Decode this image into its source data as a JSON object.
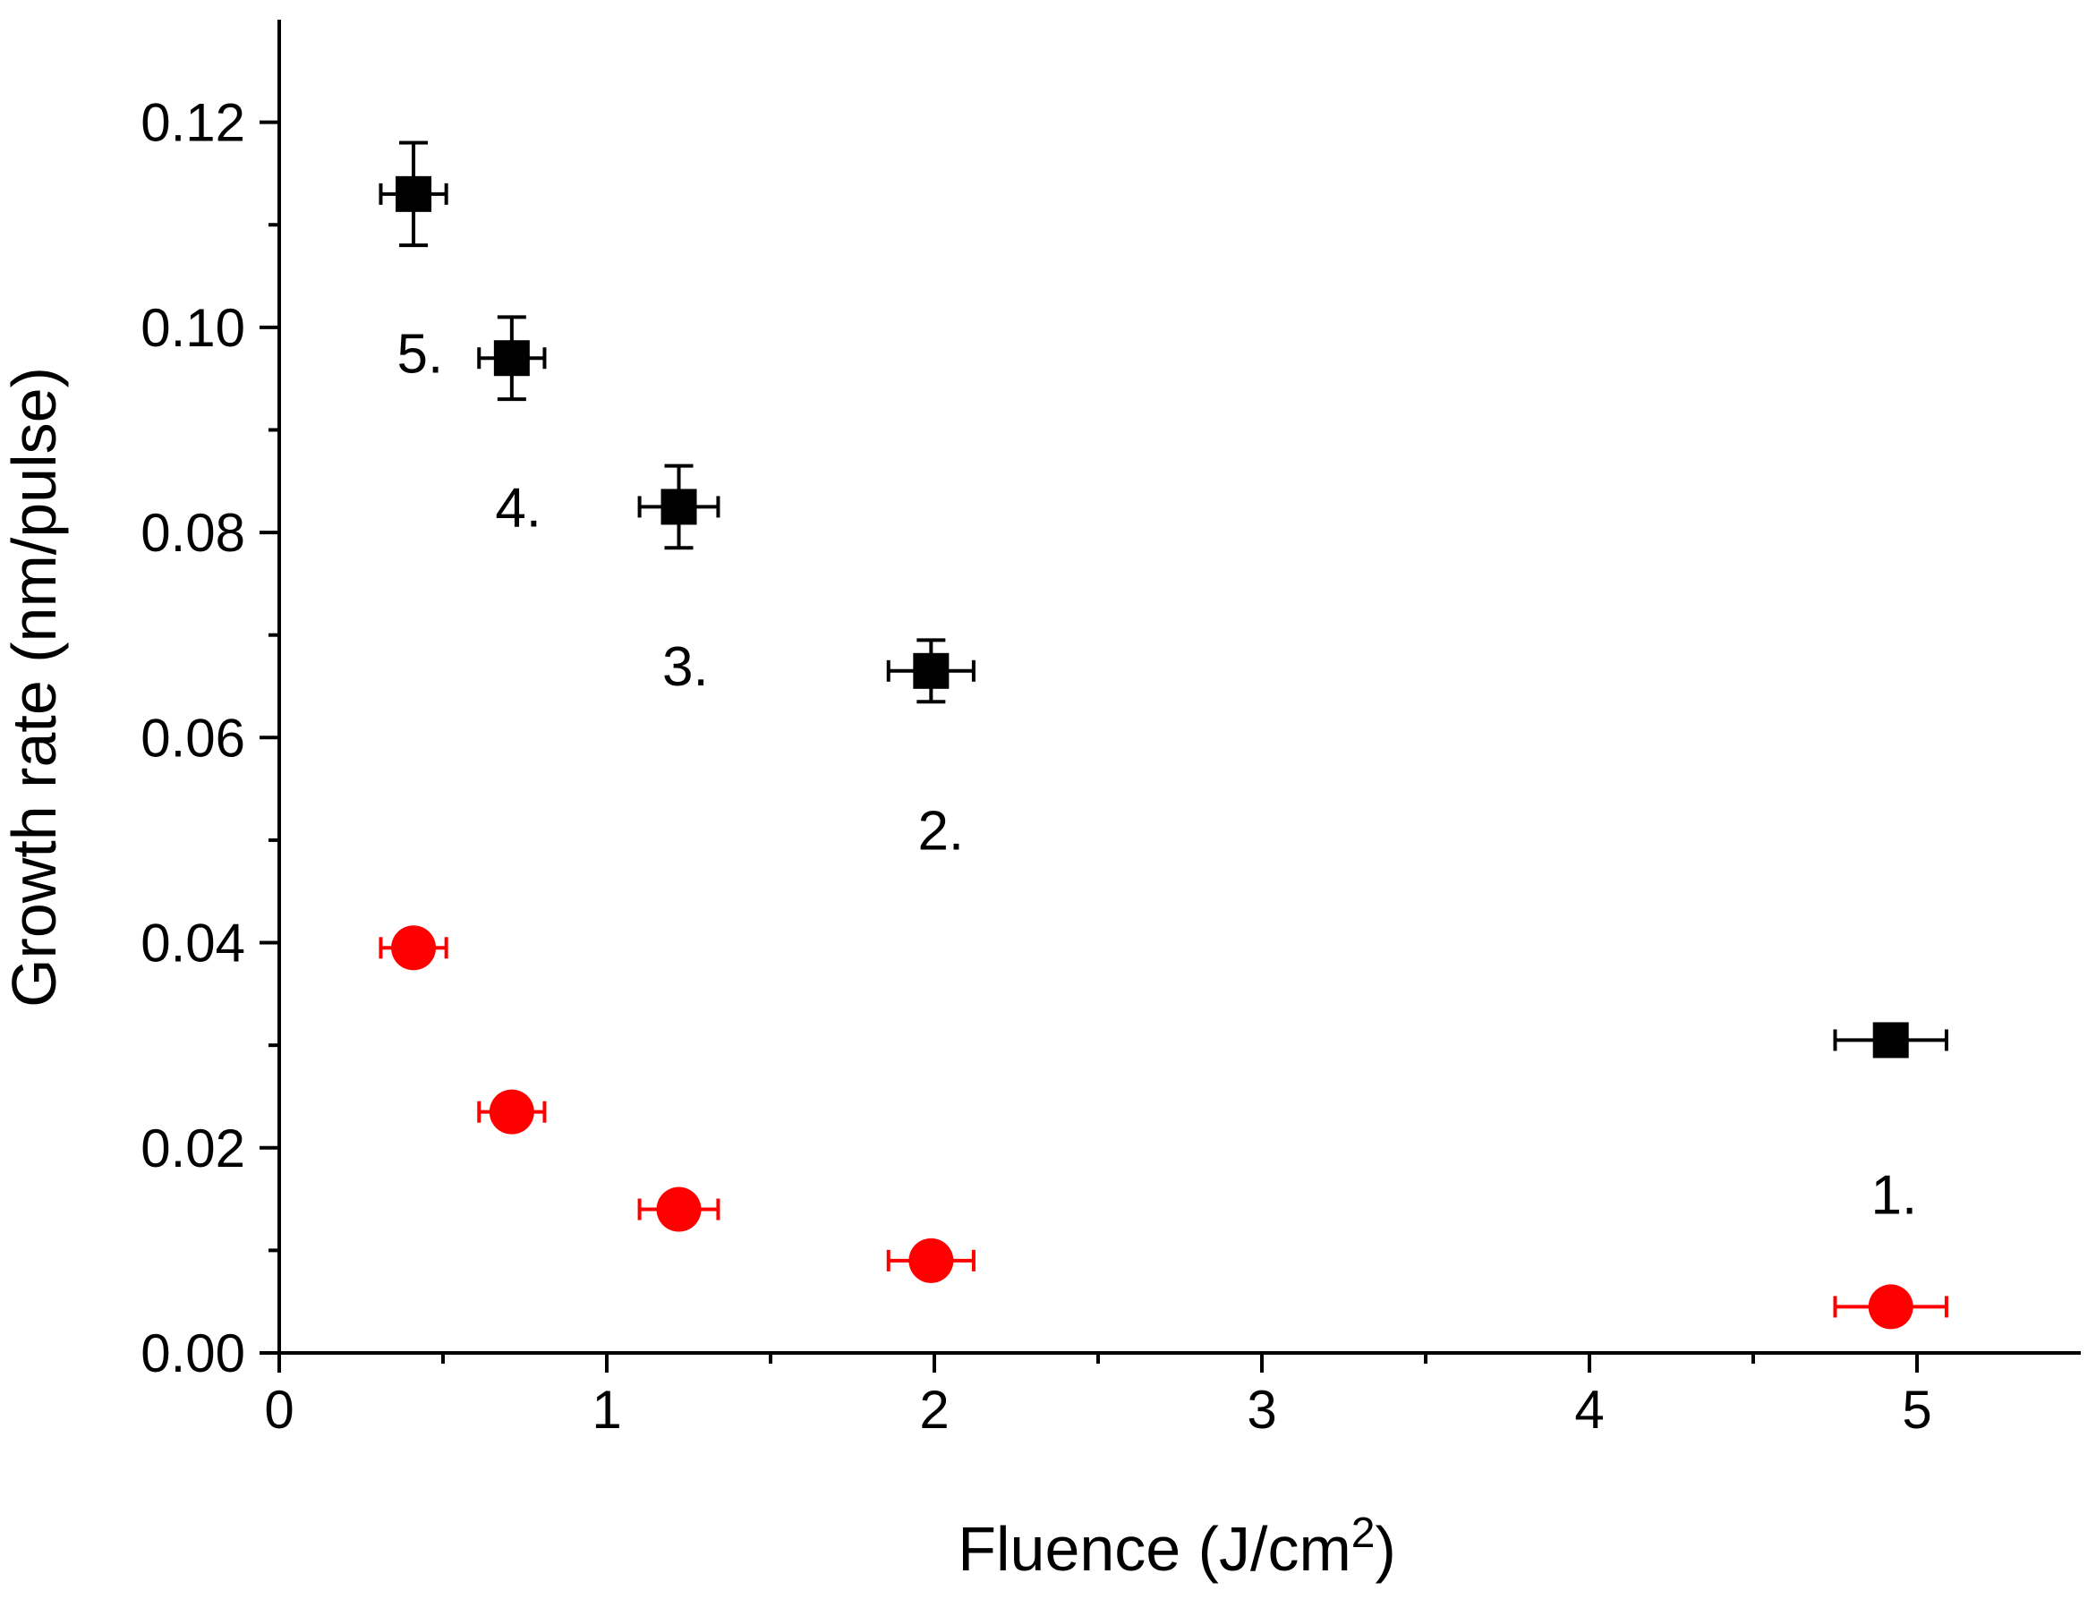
{
  "chart_data": {
    "type": "scatter",
    "title": "",
    "xlabel": "Fluence (J/cm",
    "xlabel_superscript": "2",
    "xlabel_suffix": ")",
    "ylabel": "Growth rate (nm/pulse)",
    "xlim": [
      0,
      5.5
    ],
    "ylim": [
      0,
      0.13
    ],
    "x_ticks": [
      0,
      1,
      2,
      3,
      4,
      5
    ],
    "x_tick_labels": [
      "0",
      "1",
      "2",
      "3",
      "4",
      "5"
    ],
    "x_minor_ticks": [
      0.5,
      1.5,
      2.5,
      3.5,
      4.5
    ],
    "y_ticks": [
      0,
      0.02,
      0.04,
      0.06,
      0.08,
      0.1,
      0.12
    ],
    "y_tick_labels": [
      "0.00",
      "0.02",
      "0.04",
      "0.06",
      "0.08",
      "0.10",
      "0.12"
    ],
    "y_minor_ticks": [
      0.01,
      0.03,
      0.05,
      0.07,
      0.09,
      0.11
    ],
    "grid": false,
    "legend": "none",
    "series": [
      {
        "marker": "square",
        "color": "#000000",
        "points": [
          {
            "x": 4.92,
            "y": 0.0305,
            "xerr": 0.17,
            "yerr": 0.0013
          },
          {
            "x": 1.99,
            "y": 0.0665,
            "xerr": 0.13,
            "yerr": 0.003
          },
          {
            "x": 1.22,
            "y": 0.0825,
            "xerr": 0.12,
            "yerr": 0.004
          },
          {
            "x": 0.71,
            "y": 0.097,
            "xerr": 0.1,
            "yerr": 0.004
          },
          {
            "x": 0.41,
            "y": 0.113,
            "xerr": 0.1,
            "yerr": 0.005
          }
        ]
      },
      {
        "marker": "circle",
        "color": "#ff0000",
        "points": [
          {
            "x": 4.92,
            "y": 0.0045,
            "xerr": 0.17,
            "yerr": 0
          },
          {
            "x": 1.99,
            "y": 0.009,
            "xerr": 0.13,
            "yerr": 0
          },
          {
            "x": 1.22,
            "y": 0.014,
            "xerr": 0.12,
            "yerr": 0
          },
          {
            "x": 0.71,
            "y": 0.0235,
            "xerr": 0.1,
            "yerr": 0
          },
          {
            "x": 0.41,
            "y": 0.0395,
            "xerr": 0.1,
            "yerr": 0
          }
        ]
      }
    ],
    "annotations": [
      {
        "text": "1.",
        "x": 4.93,
        "y": 0.0155
      },
      {
        "text": "2.",
        "x": 2.02,
        "y": 0.051
      },
      {
        "text": "3.",
        "x": 1.24,
        "y": 0.067
      },
      {
        "text": "4.",
        "x": 0.73,
        "y": 0.0825
      },
      {
        "text": "5.",
        "x": 0.43,
        "y": 0.0975
      }
    ]
  }
}
